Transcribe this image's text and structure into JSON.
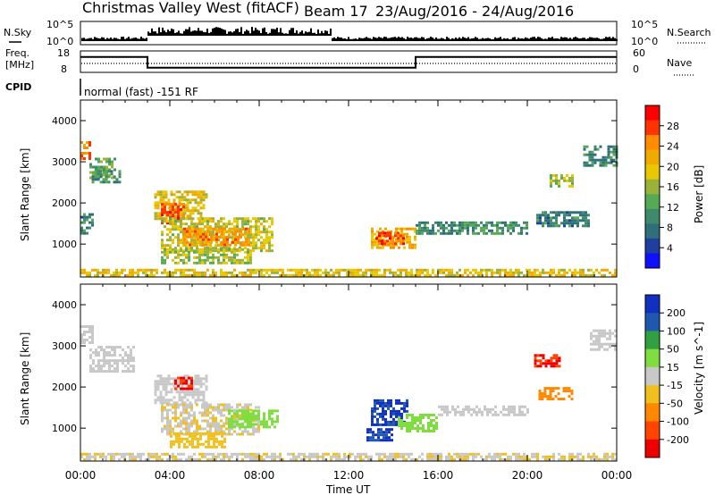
{
  "header": {
    "title": "Christmas Valley West (fitACF)",
    "beam": "Beam 17",
    "date_range": "23/Aug/2016 - 24/Aug/2016"
  },
  "top_panel": {
    "nsky_label": "N.Sky",
    "nsearch_label": "N.Search",
    "noise_ticks_left": [
      "10^5",
      "10^0"
    ],
    "noise_ticks_right": [
      "10^5",
      "10^0"
    ],
    "freq_label_line1": "Freq.",
    "freq_label_line2": "[MHz]",
    "freq_ticks": [
      "18",
      "8"
    ],
    "nave_label": "Nave",
    "nave_ticks": [
      "60",
      "0"
    ],
    "cpid_label": "CPID",
    "cpid_value": "normal (fast) -151 RF"
  },
  "colorbars": {
    "power": {
      "label": "Power [dB]",
      "ticks": [
        "28",
        "24",
        "20",
        "16",
        "12",
        "8",
        "4"
      ],
      "colors": [
        "#ff0000",
        "#ff3300",
        "#ff8c00",
        "#f0aa00",
        "#e8c800",
        "#9ab23a",
        "#55aa55",
        "#3f8a6a",
        "#2f6f7a",
        "#1f3fa0",
        "#1010ff"
      ]
    },
    "velocity": {
      "label": "Velocity [m s^-1]",
      "ticks": [
        "200",
        "100",
        "50",
        "15",
        "-15",
        "-50",
        "-100",
        "-200"
      ],
      "colors": [
        "#1030c0",
        "#2058b0",
        "#30a040",
        "#80dd40",
        "#c8c8c8",
        "#f0c020",
        "#ff8800",
        "#ff4400",
        "#ee0000"
      ]
    }
  },
  "chart_data": [
    {
      "type": "heatmap",
      "name": "Power",
      "ylabel": "Slant Range [km]",
      "ylim": [
        200,
        4500
      ],
      "yticks": [
        "4000",
        "3000",
        "2000",
        "1000"
      ],
      "units": "dB",
      "clim": [
        0,
        32
      ],
      "regions": [
        {
          "t": [
            0.0,
            0.4
          ],
          "r": [
            3100,
            3500
          ],
          "v": 26
        },
        {
          "t": [
            0.4,
            1.6
          ],
          "r": [
            2600,
            3100
          ],
          "v": 14
        },
        {
          "t": [
            0.5,
            1.8
          ],
          "r": [
            2500,
            2800
          ],
          "v": 10
        },
        {
          "t": [
            0.0,
            0.6
          ],
          "r": [
            1250,
            1750
          ],
          "v": 8
        },
        {
          "t": [
            3.3,
            5.6
          ],
          "r": [
            1600,
            2300
          ],
          "v": 20
        },
        {
          "t": [
            3.6,
            4.6
          ],
          "r": [
            1500,
            2000
          ],
          "v": 28
        },
        {
          "t": [
            3.6,
            8.6
          ],
          "r": [
            850,
            1650
          ],
          "v": 18
        },
        {
          "t": [
            4.6,
            7.6
          ],
          "r": [
            950,
            1400
          ],
          "v": 24
        },
        {
          "t": [
            3.6,
            7.6
          ],
          "r": [
            550,
            900
          ],
          "v": 16
        },
        {
          "t": [
            13.0,
            15.0
          ],
          "r": [
            900,
            1400
          ],
          "v": 22
        },
        {
          "t": [
            13.2,
            14.4
          ],
          "r": [
            1000,
            1300
          ],
          "v": 28
        },
        {
          "t": [
            15.0,
            20.0
          ],
          "r": [
            1250,
            1550
          ],
          "v": 10
        },
        {
          "t": [
            20.4,
            22.8
          ],
          "r": [
            1450,
            1800
          ],
          "v": 8
        },
        {
          "t": [
            21.0,
            22.0
          ],
          "r": [
            2400,
            2700
          ],
          "v": 16
        },
        {
          "t": [
            22.5,
            24.0
          ],
          "r": [
            2900,
            3400
          ],
          "v": 9
        },
        {
          "t": [
            0.0,
            24.0
          ],
          "r": [
            230,
            400
          ],
          "v": 20
        }
      ]
    },
    {
      "type": "heatmap",
      "name": "Velocity",
      "ylabel": "Slant Range [km]",
      "ylim": [
        200,
        4500
      ],
      "yticks": [
        "4000",
        "3000",
        "2000",
        "1000"
      ],
      "units": "m s^-1",
      "clim": [
        -250,
        250
      ],
      "regions": [
        {
          "t": [
            0.0,
            0.5
          ],
          "r": [
            3100,
            3500
          ],
          "v": 0
        },
        {
          "t": [
            0.4,
            2.4
          ],
          "r": [
            2400,
            3000
          ],
          "v": 0
        },
        {
          "t": [
            3.3,
            5.6
          ],
          "r": [
            1600,
            2300
          ],
          "v": 0
        },
        {
          "t": [
            4.2,
            5.0
          ],
          "r": [
            1950,
            2250
          ],
          "v": -220
        },
        {
          "t": [
            3.6,
            8.0
          ],
          "r": [
            850,
            1600
          ],
          "v": -30
        },
        {
          "t": [
            4.0,
            6.5
          ],
          "r": [
            550,
            900
          ],
          "v": -40
        },
        {
          "t": [
            6.6,
            8.8
          ],
          "r": [
            1000,
            1450
          ],
          "v": 70
        },
        {
          "t": [
            13.0,
            14.6
          ],
          "r": [
            1100,
            1700
          ],
          "v": 220
        },
        {
          "t": [
            12.8,
            14.0
          ],
          "r": [
            700,
            1000
          ],
          "v": 220
        },
        {
          "t": [
            14.2,
            16.0
          ],
          "r": [
            900,
            1350
          ],
          "v": 70
        },
        {
          "t": [
            16.0,
            20.0
          ],
          "r": [
            1300,
            1550
          ],
          "v": 0
        },
        {
          "t": [
            20.3,
            21.4
          ],
          "r": [
            2500,
            2800
          ],
          "v": -220
        },
        {
          "t": [
            20.5,
            22.0
          ],
          "r": [
            1700,
            2000
          ],
          "v": -150
        },
        {
          "t": [
            22.8,
            24.0
          ],
          "r": [
            2900,
            3400
          ],
          "v": 0
        },
        {
          "t": [
            0.0,
            24.0
          ],
          "r": [
            230,
            400
          ],
          "v": -30
        }
      ]
    }
  ],
  "xaxis": {
    "xlim": [
      0,
      24
    ],
    "ticks": [
      "00:00",
      "04:00",
      "08:00",
      "12:00",
      "16:00",
      "20:00",
      "00:00"
    ],
    "label": "Time UT"
  },
  "frequency_series": [
    {
      "t": [
        0,
        3
      ],
      "mhz": 15.2
    },
    {
      "t": [
        3,
        15
      ],
      "mhz": 10.2
    },
    {
      "t": [
        15,
        24
      ],
      "mhz": 15.2
    }
  ]
}
